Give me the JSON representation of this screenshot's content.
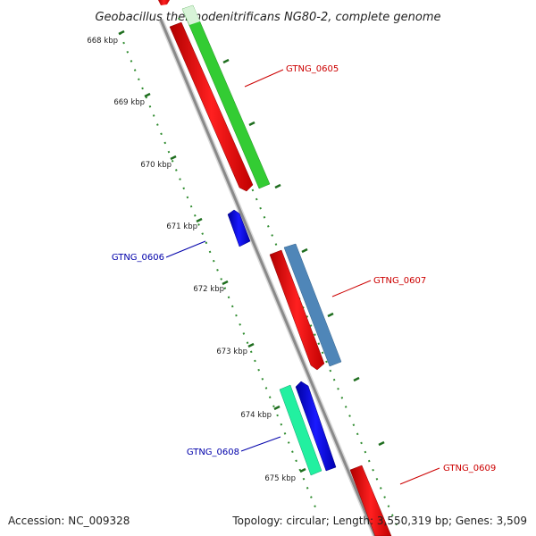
{
  "title": "Geobacillus thermodenitrificans NG80-2, complete genome",
  "ticks": [
    "668 kbp",
    "669 kbp",
    "670 kbp",
    "671 kbp",
    "672 kbp",
    "673 kbp",
    "674 kbp",
    "675 kbp"
  ],
  "genes": {
    "g0605": "GTNG_0605",
    "g0606": "GTNG_0606",
    "g0607": "GTNG_0607",
    "g0608": "GTNG_0608",
    "g0609": "GTNG_0609"
  },
  "footer": {
    "accession": "Accession: NC_009328",
    "summary": "Topology: circular; Length: 3,550,319 bp; Genes: 3,509"
  },
  "colors": {
    "backbone": "#8c8c8c",
    "forward_cds": "#ff0000",
    "reverse_cds": "#0000ee",
    "rna_green": "#33cc33",
    "rna_steel": "#4f86b8",
    "rna_mint": "#22f0a0",
    "tick": "#2e8b2e",
    "forward_label": "#cc0000",
    "reverse_label": "#0000aa"
  }
}
